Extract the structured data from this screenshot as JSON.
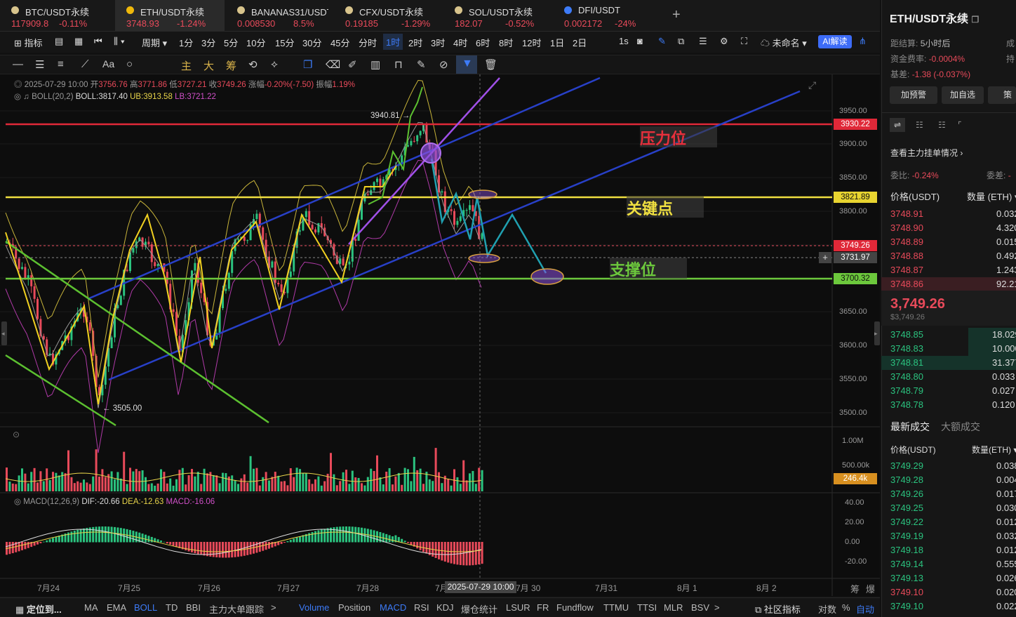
{
  "tabs": [
    {
      "name": "BTC/USDT永续",
      "price": "117909.8",
      "chg": "-0.11%",
      "pc": "red"
    },
    {
      "name": "ETH/USDT永续",
      "price": "3748.93",
      "chg": "-1.24%",
      "pc": "red"
    },
    {
      "name": "BANANAS31/USDT永续",
      "price": "0.008530",
      "chg": "8.5%",
      "pc": "red"
    },
    {
      "name": "CFX/USDT永续",
      "price": "0.19185",
      "chg": "-1.29%",
      "pc": "red"
    },
    {
      "name": "SOL/USDT永续",
      "price": "182.07",
      "chg": "-0.52%",
      "pc": "red"
    },
    {
      "name": "DFI/USDT",
      "price": "0.002172",
      "chg": "-24%",
      "pc": "red"
    }
  ],
  "toolbar": {
    "indicator": "指标",
    "period": "周期",
    "intervals": [
      "1分",
      "3分",
      "5分",
      "10分",
      "15分",
      "30分",
      "45分",
      "分时",
      "1时",
      "2时",
      "3时",
      "4时",
      "6时",
      "8时",
      "12时",
      "1日",
      "2日"
    ],
    "active": "1时",
    "sec": "1s",
    "unnamed": "未命名",
    "ai": "AI解读"
  },
  "drawbar": {
    "main": "主",
    "big": "大",
    "chip": "筹"
  },
  "info": {
    "date": "2025-07-29 10:00",
    "open_l": "开",
    "open": "3756.76",
    "high_l": "高",
    "high": "3771.86",
    "low_l": "低",
    "low": "3727.21",
    "close_l": "收",
    "close": "3749.26",
    "chg_l": "涨幅",
    "chg": "-0.20%(-7.50)",
    "amp_l": "振幅",
    "amp": "1.19%",
    "boll": "BOLL(20,2)",
    "boll_v": "BOLL:3817.40",
    "ub": "UB:3913.58",
    "lb": "LB:3721.22",
    "macd": "MACD(12,26,9)",
    "dif": "DIF:-20.66",
    "dea": "DEA:-12.63",
    "macd_v": "MACD:-16.06"
  },
  "annotations": {
    "high": "3940.81",
    "low": "3505.00",
    "pressure": "压力位",
    "key": "关键点",
    "support": "支撑位"
  },
  "price_labels": {
    "p3930": "3930.22",
    "p3821": "3821.89",
    "p3749": "3749.26",
    "p3731": "3731.97",
    "p3700": "3700.32",
    "vol": "246.4k"
  },
  "y_axis": [
    "3950.00",
    "3900.00",
    "3850.00",
    "3800.00",
    "3650.00",
    "3600.00",
    "3550.00",
    "3500.00"
  ],
  "vol_axis": [
    "1.00M",
    "500.00k"
  ],
  "macd_axis": [
    "40.00",
    "20.00",
    "0.00",
    "-20.00"
  ],
  "x_axis": [
    "7月24",
    "7月25",
    "7月26",
    "7月27",
    "7月28",
    "7月",
    "7月 30",
    "7月31",
    "8月 1",
    "8月 2"
  ],
  "crosshair_date": "2025-07-29 10:00",
  "bottom": {
    "locate": "定位到...",
    "items": [
      "MA",
      "EMA",
      "BOLL",
      "TD",
      "BBI",
      "主力大单跟踪",
      ">",
      "Volume",
      "Position",
      "MACD",
      "RSI",
      "KDJ",
      "爆仓统计",
      "LSUR",
      "FR",
      "Fundflow",
      "TTMU",
      "TTSI",
      "MLR",
      "BSV",
      ">"
    ],
    "community": "社区指标",
    "log": "对数",
    "pct": "%",
    "auto": "自动",
    "corner1": "筹",
    "corner2": "爆"
  },
  "right": {
    "title": "ETH/USDT永续",
    "settle_l": "距结算:",
    "settle": "5小时后",
    "rate_l": "资金费率:",
    "rate": "-0.0004%",
    "basis_l": "基差:",
    "basis": "-1.38 (-0.037%)",
    "cut1": "成",
    "cut2": "持",
    "btn_alert": "加预警",
    "btn_fav": "加自选",
    "btn_strat": "策略",
    "depth_link": "查看主力挂单情况",
    "weibi_l": "委比:",
    "weibi": "-0.24%",
    "weicha_l": "委差:",
    "weicha": "-",
    "col_price": "价格(USDT)",
    "col_qty": "数量 (ETH)",
    "asks": [
      [
        "3748.91",
        "0.032"
      ],
      [
        "3748.90",
        "4.320"
      ],
      [
        "3748.89",
        "0.015"
      ],
      [
        "3748.88",
        "0.492"
      ],
      [
        "3748.87",
        "1.243"
      ],
      [
        "3748.86",
        "92.219"
      ]
    ],
    "last": "3,749.26",
    "last_usd": "$3,749.26",
    "bids": [
      [
        "3748.85",
        "18.029"
      ],
      [
        "3748.83",
        "10.000"
      ],
      [
        "3748.81",
        "31.377"
      ],
      [
        "3748.80",
        "0.033"
      ],
      [
        "3748.79",
        "0.027"
      ],
      [
        "3748.78",
        "0.120"
      ]
    ],
    "trades_tab": "最新成交",
    "big_tab": "大额成交",
    "tcol_price": "价格(USDT)",
    "tcol_qty": "数量(ETH)",
    "trades": [
      [
        "3749.29",
        "0.038",
        "g"
      ],
      [
        "3749.28",
        "0.004",
        "g"
      ],
      [
        "3749.26",
        "0.017",
        "g"
      ],
      [
        "3749.25",
        "0.030",
        "g"
      ],
      [
        "3749.22",
        "0.012",
        "g"
      ],
      [
        "3749.19",
        "0.032",
        "g"
      ],
      [
        "3749.18",
        "0.012",
        "g"
      ],
      [
        "3749.14",
        "0.555",
        "g"
      ],
      [
        "3749.13",
        "0.026",
        "g"
      ],
      [
        "3749.10",
        "0.020",
        "r"
      ],
      [
        "3749.10",
        "0.022",
        "g"
      ]
    ]
  }
}
